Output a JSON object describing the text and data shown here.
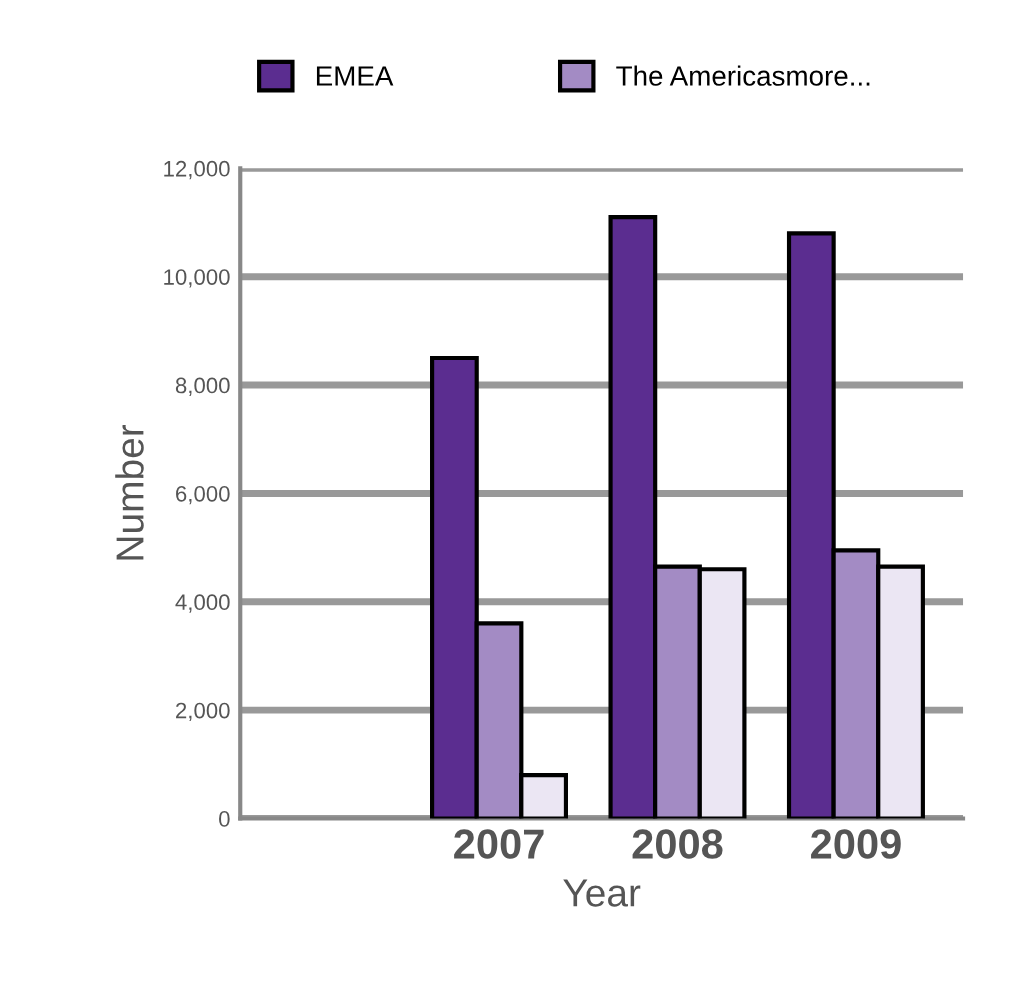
{
  "chart_data": {
    "type": "bar",
    "xlabel": "Year",
    "ylabel": "Number",
    "categories": [
      null,
      "2007",
      "2008",
      "2009"
    ],
    "series": [
      {
        "name": "EMEA",
        "color": "#5b2d90",
        "values": [
          null,
          8500,
          11100,
          10800
        ]
      },
      {
        "name": "The Americasmore...",
        "color": "#a38bc4",
        "values": [
          null,
          3600,
          4650,
          4950
        ]
      },
      {
        "color": "#ebe6f3",
        "values": [
          null,
          800,
          4600,
          4650
        ]
      }
    ],
    "ylim": [
      0,
      12000
    ],
    "yticks": [
      {
        "value": 0,
        "label": "0"
      },
      {
        "value": 2000,
        "label": "2,000"
      },
      {
        "value": 4000,
        "label": "4,000"
      },
      {
        "value": 6000,
        "label": "6,000"
      },
      {
        "value": 8000,
        "label": "8,000"
      },
      {
        "value": 10000,
        "label": "10,000"
      },
      {
        "value": 12000,
        "label": "12,000"
      }
    ],
    "grid": "y",
    "legend": "top"
  }
}
